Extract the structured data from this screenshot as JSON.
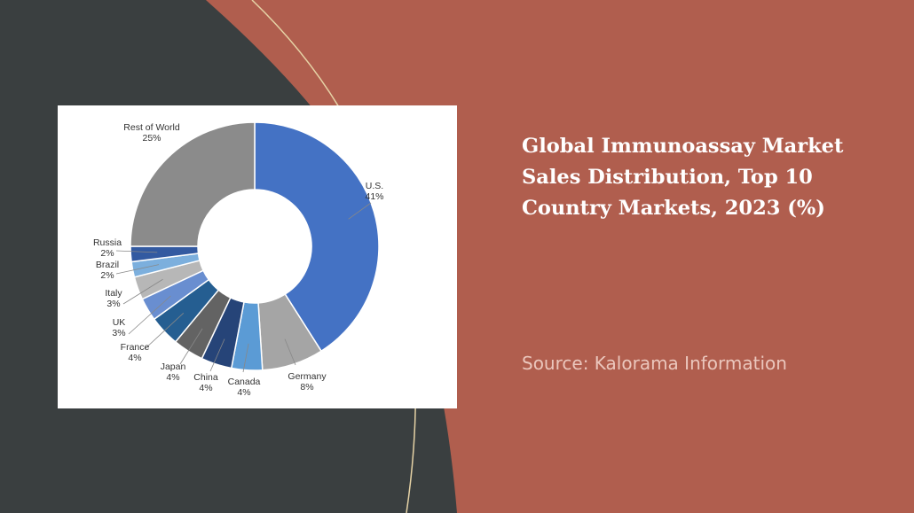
{
  "slide": {
    "title": "Global Immunoassay Market Sales Distribution, Top 10 Country Markets, 2023 (%)",
    "source": "Source: Kalorama Information",
    "colors": {
      "background": "#B05E4E",
      "dark_panel": "#3A3F40",
      "accent_line": "#E6D3A6"
    }
  },
  "chart_data": {
    "type": "pie",
    "donut": true,
    "categories": [
      "U.S.",
      "Germany",
      "Canada",
      "China",
      "Japan",
      "France",
      "UK",
      "Italy",
      "Brazil",
      "Russia",
      "Rest of World"
    ],
    "values": [
      41,
      8,
      4,
      4,
      4,
      4,
      3,
      3,
      2,
      2,
      25
    ],
    "value_labels": [
      "41%",
      "8%",
      "4%",
      "4%",
      "4%",
      "4%",
      "3%",
      "3%",
      "2%",
      "2%",
      "25%"
    ],
    "colors": [
      "#4472C4",
      "#A5A5A5",
      "#5B9BD5",
      "#264478",
      "#636363",
      "#255E91",
      "#698ED0",
      "#B7B7B7",
      "#7CAFDD",
      "#335AA1",
      "#8B8B8B"
    ]
  }
}
